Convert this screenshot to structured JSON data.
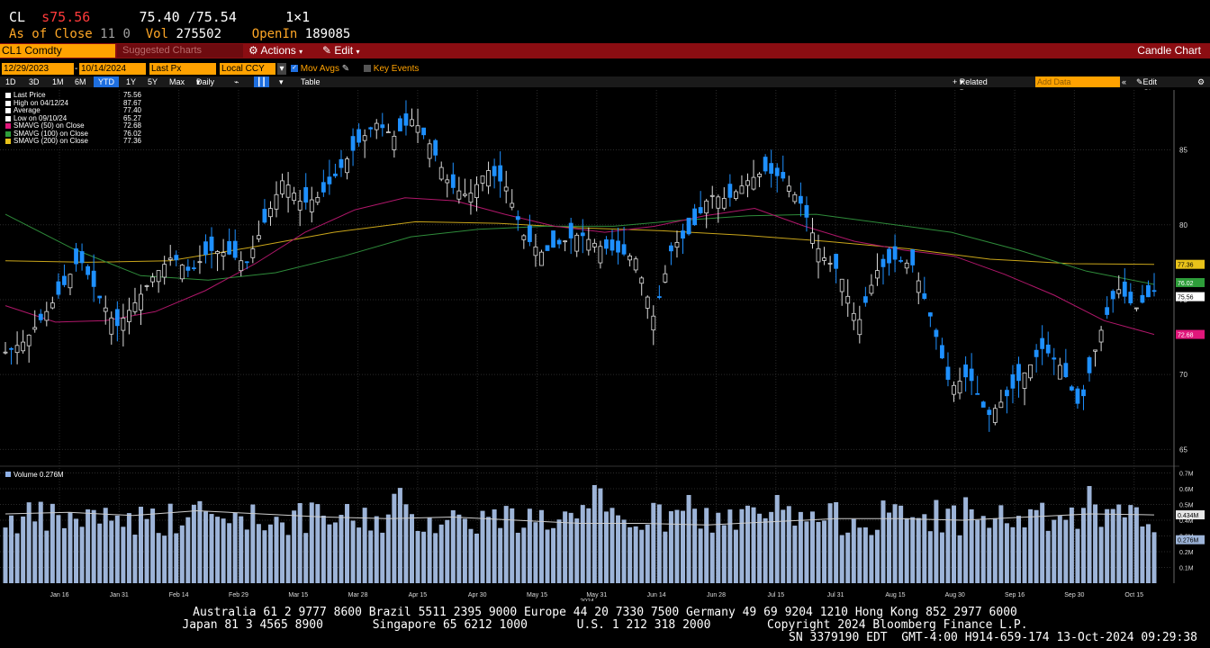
{
  "quote": {
    "ticker": "CL",
    "last_prefix": "s",
    "last": "75.56",
    "bid_ask": "75.40 /75.54",
    "size": "1×1",
    "as_of": "As of Close",
    "as_of_time": "11 0",
    "vol_label": "Vol",
    "vol": "275502",
    "oi_label": "OpenIn",
    "oi": "189085"
  },
  "menubar": {
    "security": "CL1 Comdty",
    "suggested": "Suggested Charts",
    "actions": "Actions",
    "edit": "Edit",
    "title": "Candle Chart"
  },
  "controls": {
    "start_date": "12/29/2023",
    "end_date": "10/14/2024",
    "field": "Last Px",
    "currency": "Local CCY",
    "mov_avgs": "Mov Avgs",
    "key_events": "Key Events",
    "ranges": [
      "1D",
      "3D",
      "1M",
      "6M",
      "YTD",
      "1Y",
      "5Y",
      "Max"
    ],
    "active_range": "YTD",
    "period": "Daily",
    "table": "Table",
    "related_data": "Related Data",
    "add_data_placeholder": "Add Data",
    "edit_chart": "Edit Chart"
  },
  "legend": [
    {
      "label": "Last Price",
      "value": "75.56",
      "color": "#ffffff"
    },
    {
      "label": "High on 04/12/24",
      "value": "87.67",
      "color": "#ffffff"
    },
    {
      "label": "Average",
      "value": "77.40",
      "color": "#ffffff"
    },
    {
      "label": "Low on 09/10/24",
      "value": "65.27",
      "color": "#ffffff"
    },
    {
      "label": "SMAVG (50)  on Close",
      "value": "72.68",
      "color": "#e0177b"
    },
    {
      "label": "SMAVG (100)  on Close",
      "value": "76.02",
      "color": "#2e9e3a"
    },
    {
      "label": "SMAVG (200)  on Close",
      "value": "77.36",
      "color": "#e8c21a"
    }
  ],
  "volume_legend": "Volume  0.276M",
  "chart_data": {
    "type": "candlestick",
    "price_axis": {
      "ticks": [
        65,
        70,
        75,
        80,
        85
      ],
      "min": 64,
      "max": 89
    },
    "volume_axis": {
      "ticks": [
        "0.1M",
        "0.2M",
        "0.3M",
        "0.4M",
        "0.5M",
        "0.6M",
        "0.7M"
      ],
      "min": 0,
      "max": 0.72
    },
    "x_labels": [
      "Jan 16",
      "Jan 31",
      "Feb 14",
      "Feb 29",
      "Mar 15",
      "Mar 28",
      "Apr 15",
      "Apr 30",
      "May 15",
      "May 31",
      "Jun 14",
      "Jun 28",
      "Jul 15",
      "Jul 31",
      "Aug 15",
      "Aug 30",
      "Sep 16",
      "Sep 30",
      "Oct 15"
    ],
    "year_label": "2024",
    "last_price_tag": "75.56",
    "sma200_tag": "77.36",
    "sma100_tag": "76.02",
    "sma50_tag": "72.68",
    "vol_avg_tag": "0.434M",
    "vol_last_tag": "0.276M",
    "close_path": [
      71.5,
      72.2,
      73.8,
      75.6,
      77.8,
      75.3,
      73.2,
      74.8,
      76.6,
      77.9,
      76.8,
      78.3,
      78.1,
      77.4,
      80.2,
      83.1,
      81.4,
      81.9,
      83.6,
      85.4,
      86.8,
      85.9,
      87.1,
      85.2,
      82.6,
      81.9,
      83.7,
      82.6,
      79.2,
      78.1,
      78.8,
      79.4,
      78.6,
      78.2,
      77.8,
      73.8,
      78.6,
      79.5,
      82.0,
      81.7,
      82.9,
      83.6,
      83.1,
      81.3,
      78.0,
      76.9,
      73.3,
      76.9,
      77.7,
      77.3,
      73.6,
      69.1,
      70.0,
      67.2,
      68.5,
      70.1,
      71.8,
      70.5,
      67.7,
      72.5,
      75.8,
      74.4,
      75.56
    ],
    "sma50_path": [
      74.6,
      73.5,
      73.6,
      74.2,
      75.6,
      77.4,
      79.5,
      81.0,
      81.8,
      81.6,
      80.7,
      79.9,
      79.5,
      79.9,
      80.6,
      81.1,
      79.9,
      78.9,
      78.3,
      77.9,
      76.7,
      75.3,
      73.6,
      72.68
    ],
    "sma100_path": [
      80.7,
      78.4,
      76.6,
      76.3,
      76.8,
      77.9,
      79.2,
      79.7,
      79.9,
      79.9,
      80.3,
      80.6,
      80.7,
      80.1,
      79.5,
      78.3,
      76.9,
      76.02
    ],
    "sma200_path": [
      77.6,
      77.5,
      77.6,
      78.5,
      79.5,
      80.2,
      80.1,
      79.8,
      79.6,
      79.3,
      78.9,
      78.4,
      77.7,
      77.4,
      77.36
    ],
    "volume_avg_path": [
      0.44,
      0.45,
      0.43,
      0.46,
      0.44,
      0.42,
      0.41,
      0.42,
      0.4,
      0.38,
      0.38,
      0.37,
      0.39,
      0.41,
      0.41,
      0.4,
      0.42,
      0.44,
      0.434
    ]
  },
  "footer": {
    "line1": "Australia 61 2 9777 8600 Brazil 5511 2395 9000 Europe 44 20 7330 7500 Germany 49 69 9204 1210 Hong Kong 852 2977 6000",
    "line2": "Japan 81 3 4565 8900       Singapore 65 6212 1000       U.S. 1 212 318 2000        Copyright 2024 Bloomberg Finance L.P.",
    "line3": "SN 3379190 EDT  GMT-4:00 H914-659-174 13-Oct-2024 09:29:38"
  }
}
